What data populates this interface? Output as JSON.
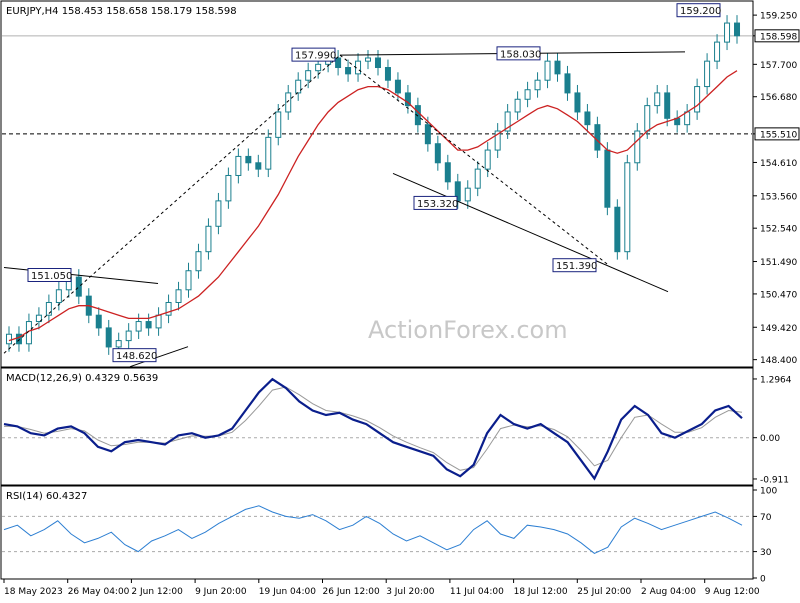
{
  "symbol_header": "EURJPY,H4  158.453 158.658 158.179 158.598",
  "watermark": "ActionForex.com",
  "colors": {
    "candle": "#1a7f8e",
    "ma": "#cc2222",
    "macd": "#0a1e8c",
    "signal": "#9a9a9a",
    "rsi": "#2d7fd2",
    "label_border": "#1a237e"
  },
  "chart_data": [
    {
      "type": "candlestick",
      "title": "EURJPY,H4  158.453 158.658 158.179 158.598",
      "y_ticks": [
        "159.250",
        "158.598",
        "157.700",
        "156.680",
        "155.510",
        "154.610",
        "153.560",
        "152.540",
        "151.490",
        "150.470",
        "149.420",
        "148.400"
      ],
      "ylim": [
        148.2,
        159.6
      ],
      "x_ticks": [
        "18 May 2023",
        "26 May 04:00",
        "2 Jun 12:00",
        "9 Jun 20:00",
        "19 Jun 04:00",
        "26 Jun 12:00",
        "3 Jul 20:00",
        "11 Jul 04:00",
        "18 Jul 12:00",
        "25 Jul 20:00",
        "2 Aug 04:00",
        "9 Aug 12:00"
      ],
      "current_price": "158.598",
      "support_level": "155.510",
      "annotations": [
        "151.050",
        "148.620",
        "157.990",
        "158.030",
        "153.320",
        "151.390",
        "159.200"
      ],
      "closes": [
        149.2,
        148.9,
        149.6,
        149.8,
        150.2,
        150.6,
        151.0,
        150.4,
        149.8,
        149.4,
        148.8,
        149.0,
        149.3,
        149.6,
        149.4,
        149.8,
        150.2,
        150.6,
        151.2,
        151.8,
        152.6,
        153.4,
        154.2,
        154.8,
        154.6,
        154.4,
        155.4,
        156.2,
        156.8,
        157.2,
        157.5,
        157.7,
        157.9,
        157.6,
        157.4,
        157.8,
        157.9,
        157.6,
        157.2,
        156.8,
        156.4,
        155.8,
        155.2,
        154.6,
        154.0,
        153.4,
        153.8,
        154.4,
        155.0,
        155.6,
        156.2,
        156.6,
        156.9,
        157.2,
        157.8,
        157.4,
        156.8,
        156.2,
        155.8,
        155.0,
        153.2,
        151.8,
        154.6,
        155.6,
        156.4,
        156.8,
        156.0,
        155.8,
        156.2,
        157.0,
        157.8,
        158.4,
        159.0,
        158.6
      ],
      "ma": [
        149.0,
        149.1,
        149.3,
        149.4,
        149.6,
        149.8,
        150.0,
        150.1,
        150.1,
        150.0,
        149.9,
        149.8,
        149.7,
        149.7,
        149.7,
        149.8,
        149.9,
        150.0,
        150.2,
        150.4,
        150.7,
        151.0,
        151.4,
        151.8,
        152.2,
        152.6,
        153.1,
        153.6,
        154.2,
        154.8,
        155.3,
        155.8,
        156.2,
        156.5,
        156.7,
        156.9,
        157.0,
        157.0,
        156.9,
        156.7,
        156.5,
        156.2,
        155.9,
        155.6,
        155.3,
        155.0,
        155.0,
        155.1,
        155.3,
        155.5,
        155.7,
        155.9,
        156.1,
        156.3,
        156.4,
        156.3,
        156.1,
        155.9,
        155.6,
        155.3,
        155.0,
        154.9,
        155.0,
        155.3,
        155.6,
        155.8,
        155.9,
        156.0,
        156.2,
        156.4,
        156.7,
        157.0,
        157.3,
        157.5
      ]
    },
    {
      "type": "line",
      "title": "MACD(12,26,9) 0.4329 0.5639",
      "y_ticks": [
        "1.2964",
        "0.00",
        "-0.911"
      ],
      "ylim": [
        -1.0,
        1.45
      ],
      "macd": [
        0.3,
        0.25,
        0.1,
        0.05,
        0.2,
        0.25,
        0.1,
        -0.2,
        -0.3,
        -0.1,
        -0.05,
        -0.1,
        -0.15,
        0.05,
        0.1,
        0.0,
        0.05,
        0.2,
        0.6,
        1.0,
        1.29,
        1.1,
        0.8,
        0.6,
        0.5,
        0.55,
        0.4,
        0.3,
        0.1,
        -0.1,
        -0.2,
        -0.3,
        -0.4,
        -0.7,
        -0.85,
        -0.6,
        0.1,
        0.5,
        0.3,
        0.2,
        0.3,
        0.1,
        -0.1,
        -0.5,
        -0.9,
        -0.3,
        0.4,
        0.7,
        0.5,
        0.1,
        0.0,
        0.15,
        0.3,
        0.6,
        0.7,
        0.43
      ],
      "signal": [
        0.25,
        0.25,
        0.18,
        0.1,
        0.14,
        0.2,
        0.15,
        -0.05,
        -0.18,
        -0.15,
        -0.1,
        -0.1,
        -0.12,
        -0.04,
        0.04,
        0.03,
        0.04,
        0.12,
        0.38,
        0.7,
        1.05,
        1.12,
        0.95,
        0.75,
        0.6,
        0.56,
        0.48,
        0.38,
        0.22,
        0.04,
        -0.1,
        -0.22,
        -0.33,
        -0.55,
        -0.72,
        -0.66,
        -0.25,
        0.2,
        0.28,
        0.24,
        0.26,
        0.18,
        0.02,
        -0.28,
        -0.62,
        -0.5,
        0.0,
        0.45,
        0.5,
        0.3,
        0.12,
        0.12,
        0.22,
        0.45,
        0.6,
        0.56
      ]
    },
    {
      "type": "line",
      "title": "RSI(14) 60.4327",
      "y_ticks": [
        "100",
        "70",
        "30",
        "0"
      ],
      "ylim": [
        0,
        100
      ],
      "rsi": [
        55,
        60,
        48,
        55,
        65,
        50,
        40,
        45,
        52,
        38,
        30,
        42,
        48,
        55,
        45,
        52,
        62,
        70,
        78,
        82,
        75,
        70,
        68,
        72,
        65,
        55,
        60,
        70,
        62,
        50,
        42,
        48,
        40,
        32,
        38,
        55,
        65,
        50,
        45,
        60,
        58,
        55,
        50,
        40,
        28,
        35,
        58,
        68,
        62,
        55,
        60,
        65,
        70,
        75,
        68,
        60
      ]
    }
  ]
}
